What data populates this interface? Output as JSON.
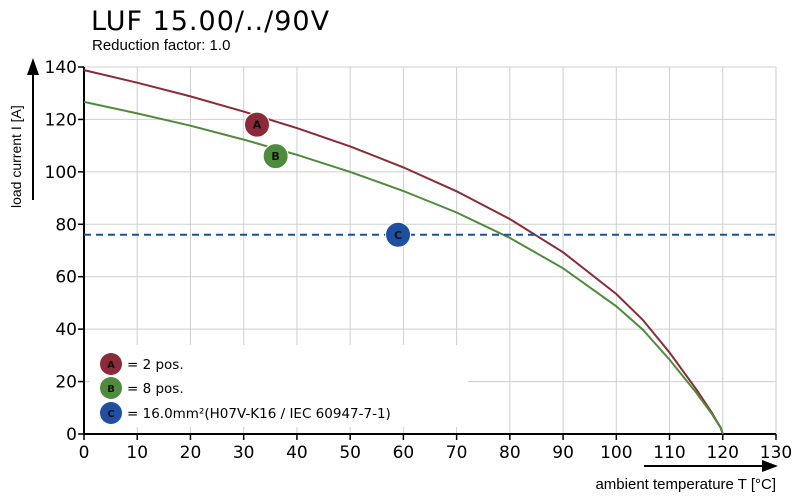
{
  "chart_data": {
    "type": "line",
    "title": "LUF 15.00/../90V",
    "subtitle": "Reduction factor: 1.0",
    "xlabel": "ambient temperature T [°C]",
    "ylabel": "load current I [A]",
    "xlim": [
      0,
      130
    ],
    "ylim": [
      0,
      140
    ],
    "xticks": [
      0,
      10,
      20,
      30,
      40,
      50,
      60,
      70,
      80,
      90,
      100,
      110,
      120,
      130
    ],
    "yticks": [
      0,
      20,
      40,
      60,
      80,
      100,
      120,
      140
    ],
    "grid": true,
    "series": [
      {
        "name": "A",
        "label": "= 2 pos.",
        "color": "#8b2b3a",
        "x": [
          0,
          10,
          20,
          30,
          40,
          50,
          60,
          70,
          80,
          90,
          100,
          105,
          110,
          115,
          118,
          119,
          119.6,
          120
        ],
        "y": [
          138.8,
          134.0,
          128.8,
          123.0,
          116.7,
          109.7,
          101.7,
          92.6,
          82.0,
          69.3,
          53.4,
          43.5,
          31.1,
          17.1,
          8.0,
          4.5,
          2.5,
          0
        ]
      },
      {
        "name": "B",
        "label": "= 8 pos.",
        "color": "#4f8b3c",
        "x": [
          0,
          10,
          20,
          30,
          40,
          50,
          60,
          70,
          80,
          90,
          100,
          105,
          110,
          115,
          118,
          119,
          119.6,
          120
        ],
        "y": [
          126.7,
          122.3,
          117.6,
          112.3,
          106.5,
          100.0,
          92.7,
          84.5,
          74.8,
          63.2,
          48.7,
          39.8,
          28.4,
          15.8,
          7.5,
          4.3,
          2.4,
          0
        ]
      },
      {
        "name": "C",
        "label": "= 16.0mm²(H07V-K16 / IEC 60947-7-1)",
        "color": "#1e4fa0",
        "style": "dashed",
        "x": [
          0,
          130
        ],
        "y": [
          76,
          76
        ]
      }
    ],
    "markers": [
      {
        "name": "A",
        "x": 32.5,
        "y": 118,
        "color": "#8b2b3a"
      },
      {
        "name": "B",
        "x": 36,
        "y": 106,
        "color": "#4f8b3c"
      },
      {
        "name": "C",
        "x": 59,
        "y": 76,
        "color": "#1e4fa0"
      }
    ],
    "legend_position": "bottom-left"
  }
}
